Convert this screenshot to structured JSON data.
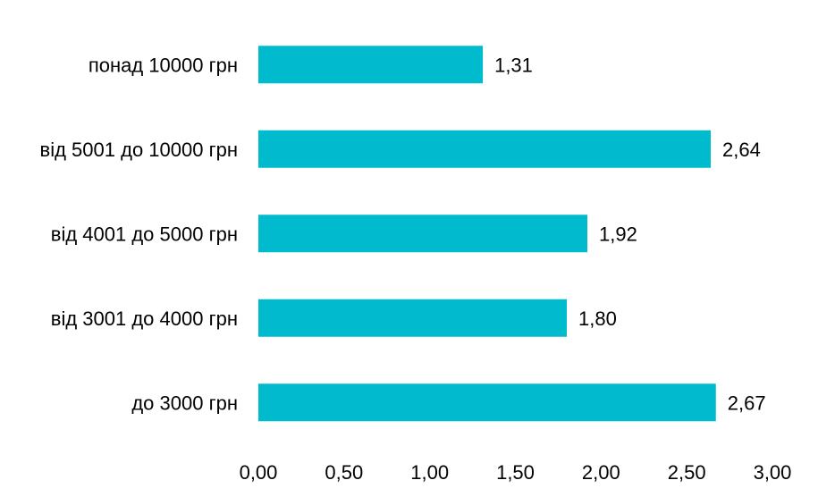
{
  "chart_data": {
    "type": "bar",
    "orientation": "horizontal",
    "title": "",
    "xlabel": "",
    "ylabel": "",
    "categories": [
      "понад 10000 грн",
      "від 5001 до 10000 грн",
      "від 4001 до 5000 грн",
      "від 3001 до 4000 грн",
      "до 3000 грн"
    ],
    "values": [
      1.31,
      2.64,
      1.92,
      1.8,
      2.67
    ],
    "value_labels": [
      "1,31",
      "2,64",
      "1,92",
      "1,80",
      "2,67"
    ],
    "xlim": [
      0,
      3
    ],
    "x_ticks": [
      0,
      0.5,
      1,
      1.5,
      2,
      2.5,
      3
    ],
    "x_tick_labels": [
      "0,00",
      "0,50",
      "1,00",
      "1,50",
      "2,00",
      "2,50",
      "3,00"
    ],
    "bar_color": "#00BACD",
    "grid": false,
    "legend": "none"
  }
}
